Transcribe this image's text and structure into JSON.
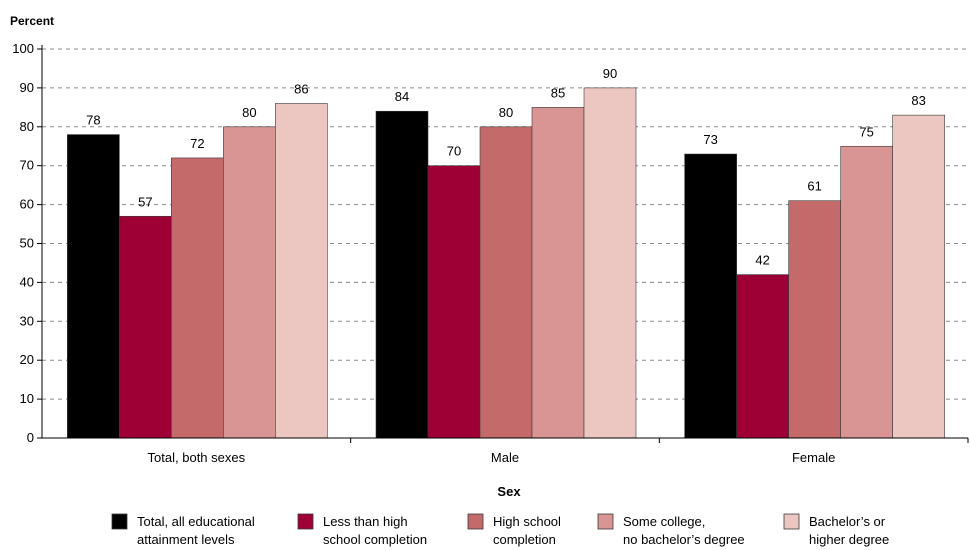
{
  "chart_data": {
    "type": "bar",
    "ylabel": "Percent",
    "xlabel": "Sex",
    "ylim": [
      0,
      100
    ],
    "yticks": [
      0,
      10,
      20,
      30,
      40,
      50,
      60,
      70,
      80,
      90,
      100
    ],
    "grid": true,
    "legend_position": "bottom",
    "categories": [
      "Total, both sexes",
      "Male",
      "Female"
    ],
    "series": [
      {
        "name": "Total, all educational attainment levels",
        "name_lines": [
          "Total, all educational",
          "attainment levels"
        ],
        "color": "#000000",
        "values": [
          78,
          84,
          73
        ]
      },
      {
        "name": "Less than high school completion",
        "name_lines": [
          "Less than high",
          "school completion"
        ],
        "color": "#9e0036",
        "values": [
          57,
          70,
          42
        ]
      },
      {
        "name": "High school completion",
        "name_lines": [
          "High school",
          "completion"
        ],
        "color": "#c46a6a",
        "values": [
          72,
          80,
          61
        ]
      },
      {
        "name": "Some college, no bachelor's degree",
        "name_lines": [
          "Some college,",
          "no bachelor’s degree"
        ],
        "color": "#d99593",
        "values": [
          80,
          85,
          75
        ]
      },
      {
        "name": "Bachelor's or higher degree",
        "name_lines": [
          "Bachelor’s or",
          "higher degree"
        ],
        "color": "#ecc6c0",
        "values": [
          86,
          90,
          83
        ]
      }
    ]
  }
}
